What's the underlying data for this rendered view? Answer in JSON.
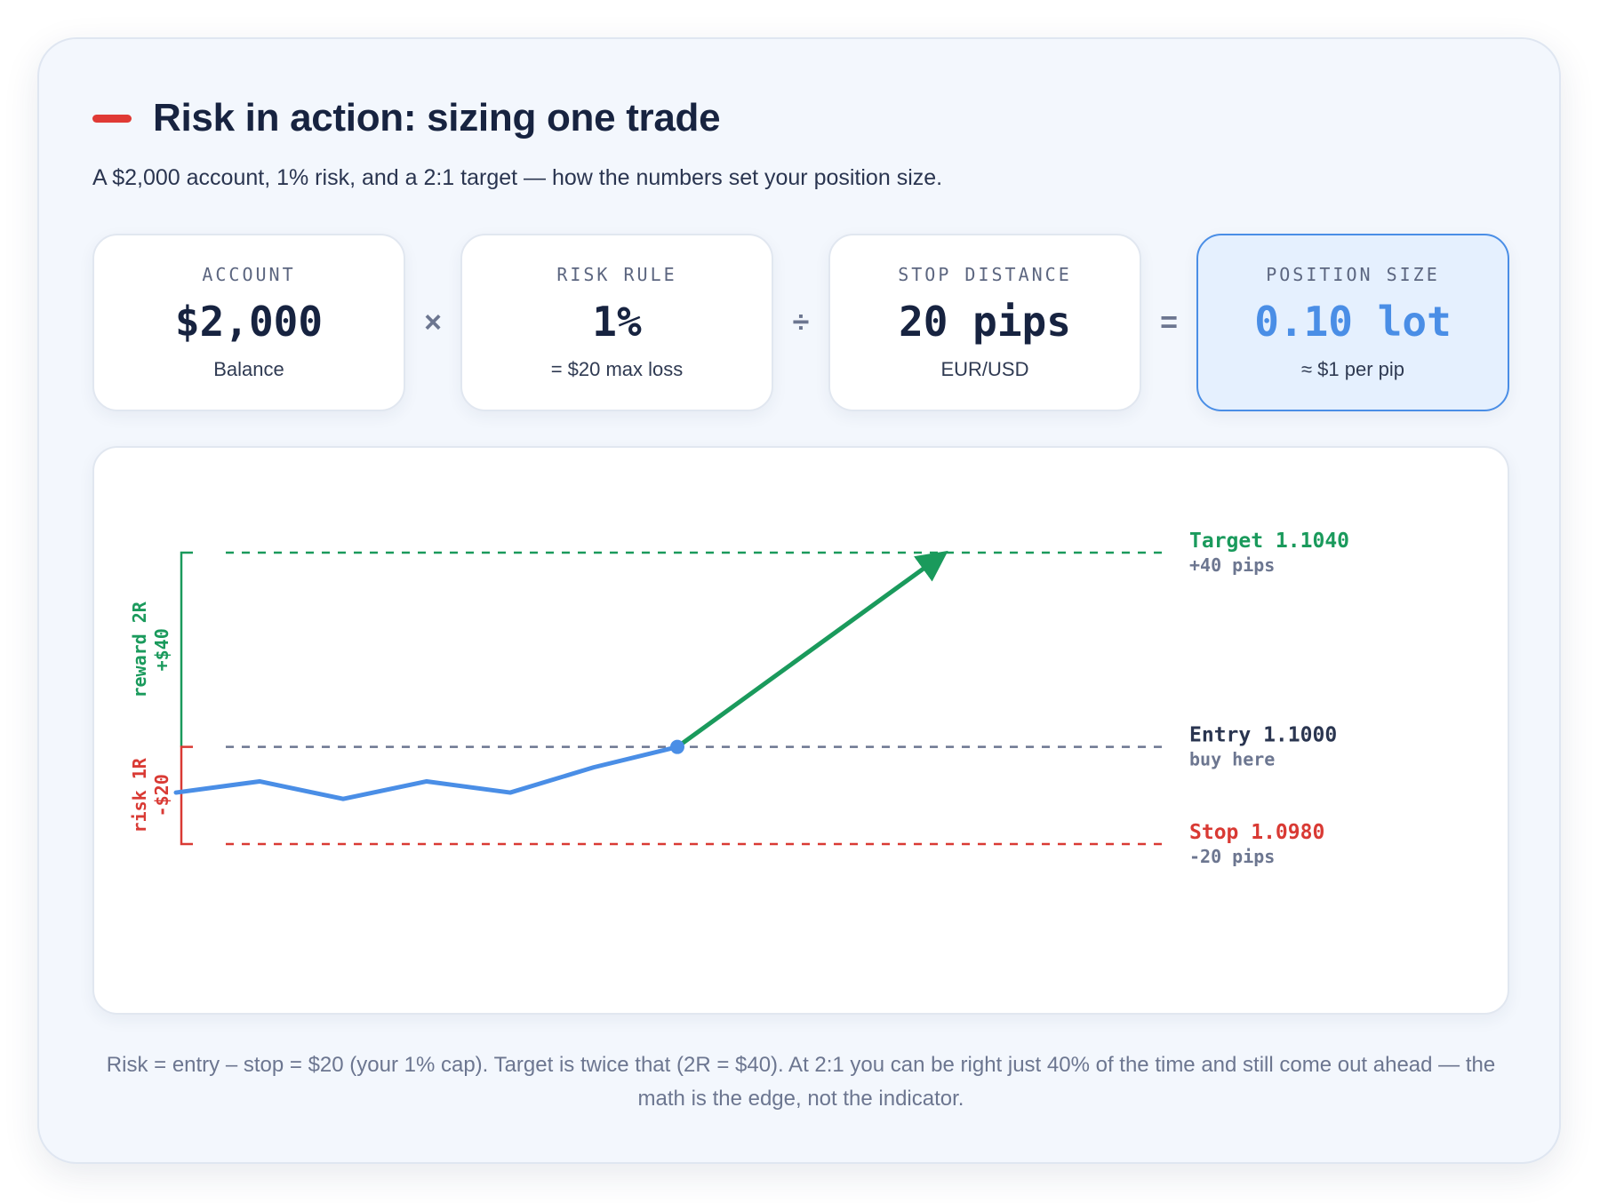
{
  "header": {
    "title": "Risk in action: sizing one trade",
    "subtitle": "A $2,000 account, 1% risk, and a 2:1 target — how the numbers set your position size."
  },
  "metrics": [
    {
      "label": "ACCOUNT",
      "value": "$2,000",
      "sub": "Balance"
    },
    {
      "label": "RISK RULE",
      "value": "1%",
      "sub": "= $20 max loss"
    },
    {
      "label": "STOP DISTANCE",
      "value": "20 pips",
      "sub": "EUR/USD"
    },
    {
      "label": "POSITION SIZE",
      "value": "0.10 lot",
      "sub": "≈ $1 per pip"
    }
  ],
  "operators": [
    "×",
    "÷",
    "="
  ],
  "chart": {
    "levels": {
      "target": {
        "price": 1.104,
        "label": "Target 1.1040",
        "sub": "+40 pips"
      },
      "entry": {
        "price": 1.1,
        "label": "Entry 1.1000",
        "sub": "buy here"
      },
      "stop": {
        "price": 1.098,
        "label": "Stop 1.0980",
        "sub": "-20 pips"
      }
    },
    "reward_label": "reward 2R",
    "reward_value": "+$40",
    "risk_label": "risk 1R",
    "risk_value": "-$20"
  },
  "chart_data": {
    "type": "line",
    "price_path": [
      1.09906,
      1.09929,
      1.09893,
      1.09929,
      1.09906,
      1.09958,
      1.1
    ],
    "projection": [
      1.1,
      1.104
    ],
    "reference_lines": [
      1.104,
      1.1,
      1.098
    ]
  },
  "colors": {
    "accent_red": "#d93a34",
    "target_green": "#1a9a5c",
    "price_blue": "#4a8ee6",
    "entry_gray": "#6c7690",
    "title_bar": "#e03a35"
  },
  "footnote": "Risk = entry – stop = $20 (your 1% cap). Target is twice that (2R = $40). At 2:1 you can be right just 40% of the time and still come out ahead — the math is the edge, not the indicator."
}
